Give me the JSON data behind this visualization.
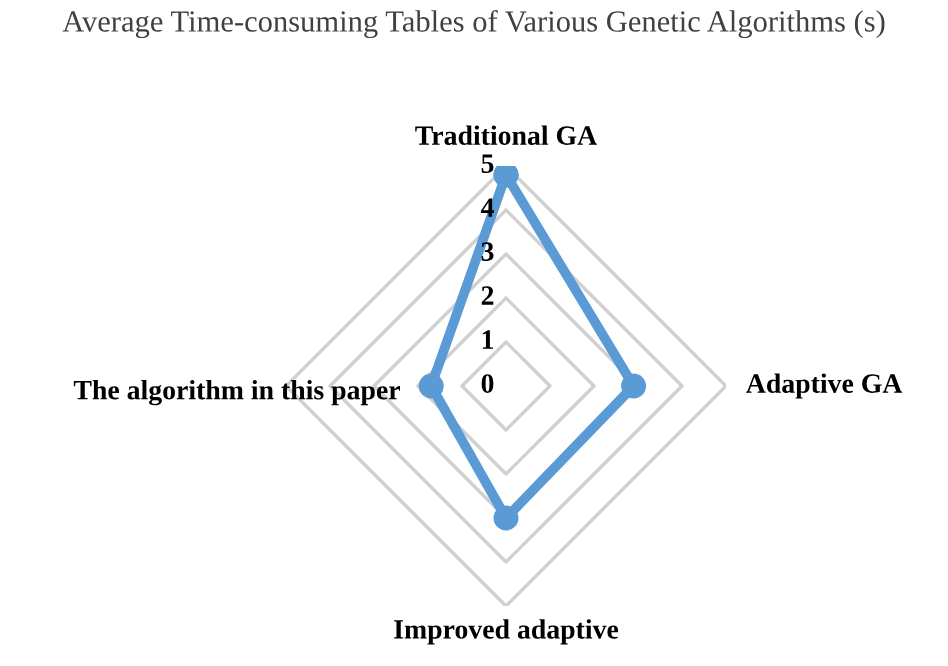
{
  "chart_data": {
    "type": "radar",
    "title": "Average Time-consuming Tables of Various Genetic Algorithms (s)",
    "categories": [
      "Traditional GA",
      "Adaptive GA",
      "Improved adaptive",
      "The algorithm in this paper"
    ],
    "series": [
      {
        "color": "#5b9bd5",
        "values": [
          4.8,
          2.9,
          3.0,
          1.7
        ]
      }
    ],
    "ylim": [
      0,
      5
    ],
    "yticks": [
      0,
      1,
      2,
      3,
      4,
      5
    ],
    "grid": true,
    "marker": "circle"
  }
}
